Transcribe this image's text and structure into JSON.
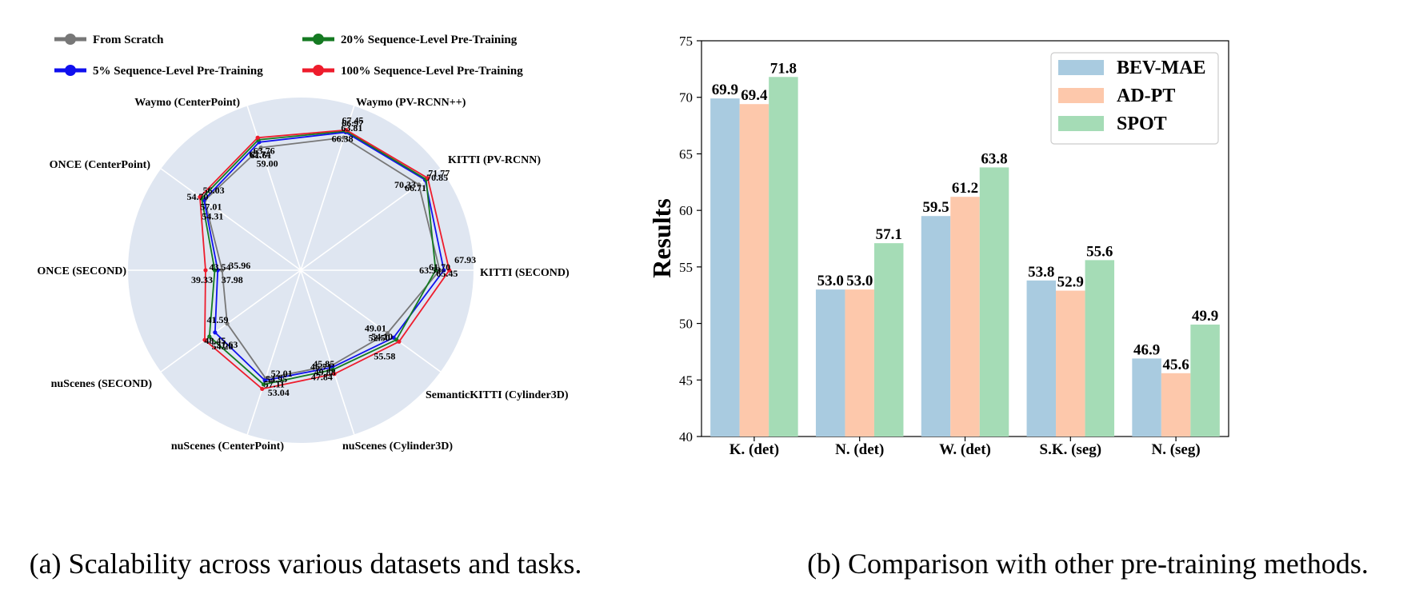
{
  "chart_data": [
    {
      "type": "radar",
      "caption": "(a) Scalability across various datasets and tasks.",
      "axes": [
        "KITTI (SECOND)",
        "KITTI (PV-RCNN)",
        "Waymo (PV-RCNN++)",
        "Waymo (CenterPoint)",
        "ONCE (CenterPoint)",
        "ONCE (SECOND)",
        "nuScenes (SECOND)",
        "nuScenes (CenterPoint)",
        "nuScenes (Cylinder3D)",
        "SemanticKITTI (Cylinder3D)"
      ],
      "series": [
        {
          "name": "From Scratch",
          "color": "#777777",
          "values": [
            63.53,
            66.71,
            63.81,
            59.0,
            54.31,
            35.96,
            41.59,
            52.01,
            45.85,
            49.01
          ]
        },
        {
          "name": "5% Sequence-Level Pre-Training",
          "color": "#1010ee",
          "values": [
            65.45,
            70.33,
            66.38,
            61.61,
            54.7,
            37.98,
            48.45,
            53.04,
            46.71,
            52.5
          ]
        },
        {
          "name": "20%  Sequence-Level Pre-Training",
          "color": "#157a22",
          "values": [
            61.7,
            70.85,
            66.97,
            62.74,
            56.03,
            39.33,
            51.63,
            54.95,
            47.84,
            54.1
          ]
        },
        {
          "name": "100% Sequence-Level Pre-Training",
          "color": "#ee1c2c",
          "values": [
            67.93,
            71.77,
            67.45,
            63.76,
            57.01,
            43.54,
            54.28,
            57.11,
            49.88,
            55.58
          ]
        }
      ]
    },
    {
      "type": "bar",
      "caption": "(b) Comparison with other pre-training methods.",
      "categories": [
        "K. (det)",
        "N. (det)",
        "W. (det)",
        "S.K. (seg)",
        "N. (seg)"
      ],
      "series": [
        {
          "name": "BEV-MAE",
          "color": "#a9cbe0",
          "values": [
            69.9,
            53.0,
            59.5,
            53.8,
            46.9
          ]
        },
        {
          "name": "AD-PT",
          "color": "#fdc8ab",
          "values": [
            69.4,
            53.0,
            61.2,
            52.9,
            45.6
          ]
        },
        {
          "name": "SPOT",
          "color": "#a5dcb6",
          "values": [
            71.8,
            57.1,
            63.8,
            55.6,
            49.9
          ]
        }
      ],
      "ylabel": "Results",
      "ylim": [
        40,
        75
      ],
      "yticks": [
        40,
        45,
        50,
        55,
        60,
        65,
        70,
        75
      ],
      "legend": "top-right"
    }
  ]
}
